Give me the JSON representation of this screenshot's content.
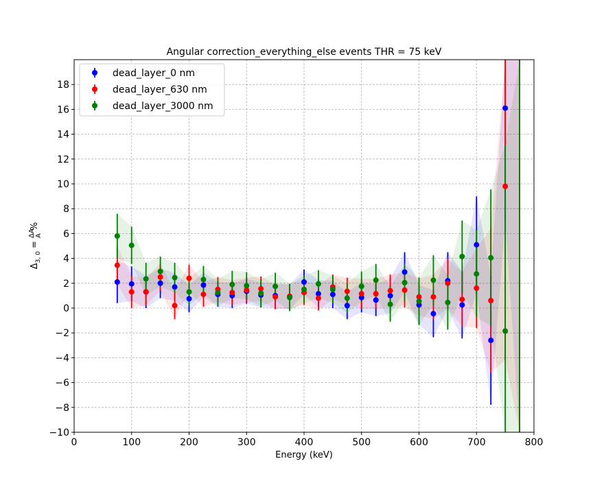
{
  "chart_data": {
    "type": "scatter",
    "title": "Angular correction_everything_else events THR = 75 keV",
    "xlabel": "Energy (keV)",
    "ylabel": "Δ3,0 = ΔA/A %",
    "xlim": [
      0,
      800
    ],
    "ylim": [
      -10,
      20
    ],
    "xticks": [
      0,
      100,
      200,
      300,
      400,
      500,
      600,
      700,
      800
    ],
    "yticks": [
      -10,
      -8,
      -6,
      -4,
      -2,
      0,
      2,
      4,
      6,
      8,
      10,
      12,
      14,
      16,
      18
    ],
    "grid": true,
    "legend_position": "top-left",
    "x": [
      75,
      100,
      125,
      150,
      175,
      200,
      225,
      250,
      275,
      300,
      325,
      350,
      375,
      400,
      425,
      450,
      475,
      500,
      525,
      550,
      575,
      600,
      625,
      650,
      675,
      700,
      725,
      750,
      775
    ],
    "series": [
      {
        "name": "dead_layer_0 nm",
        "color": "#0000ff",
        "values": [
          2.1,
          1.95,
          1.3,
          2.0,
          1.7,
          0.75,
          1.85,
          1.1,
          1.0,
          1.35,
          1.05,
          1.0,
          0.9,
          2.1,
          1.15,
          1.1,
          0.2,
          0.85,
          0.65,
          1.0,
          2.9,
          0.25,
          -0.45,
          2.2,
          0.25,
          5.1,
          -2.6,
          16.1,
          null
        ],
        "errors": [
          1.7,
          1.4,
          1.3,
          1.2,
          1.1,
          1.1,
          1.0,
          1.0,
          1.0,
          1.0,
          1.0,
          1.0,
          1.0,
          1.0,
          1.1,
          1.1,
          1.1,
          1.2,
          1.3,
          1.4,
          1.6,
          1.6,
          1.9,
          2.3,
          2.7,
          3.9,
          5.2,
          9.0,
          30
        ]
      },
      {
        "name": "dead_layer_630 nm",
        "color": "#ff0000",
        "values": [
          3.45,
          1.3,
          1.3,
          2.5,
          0.2,
          2.4,
          1.1,
          1.5,
          1.25,
          1.45,
          1.55,
          0.9,
          0.95,
          1.25,
          0.8,
          1.7,
          1.35,
          1.15,
          1.15,
          1.4,
          1.45,
          0.9,
          0.9,
          2.0,
          0.7,
          1.6,
          0.6,
          9.8,
          null
        ],
        "errors": [
          1.5,
          1.3,
          1.1,
          1.1,
          1.1,
          1.1,
          1.0,
          1.0,
          1.0,
          1.0,
          1.0,
          1.0,
          1.0,
          1.0,
          1.0,
          1.0,
          1.1,
          1.2,
          1.2,
          1.3,
          1.4,
          1.5,
          1.8,
          2.0,
          2.2,
          3.2,
          5.8,
          14,
          30
        ]
      },
      {
        "name": "dead_layer_3000 nm",
        "color": "#008000",
        "values": [
          5.8,
          5.05,
          2.35,
          2.95,
          2.45,
          1.3,
          2.3,
          1.25,
          1.9,
          1.8,
          1.2,
          1.75,
          0.85,
          1.5,
          1.95,
          1.5,
          0.8,
          1.75,
          2.25,
          0.3,
          2.05,
          0.55,
          2.25,
          0.45,
          4.15,
          2.75,
          4.05,
          -1.85,
          null
        ],
        "errors": [
          1.8,
          1.5,
          1.3,
          1.2,
          1.2,
          1.1,
          1.1,
          1.1,
          1.1,
          1.1,
          1.1,
          1.1,
          1.1,
          1.1,
          1.1,
          1.1,
          1.2,
          1.2,
          1.3,
          1.4,
          1.5,
          1.9,
          2.0,
          2.2,
          2.9,
          3.5,
          5.5,
          15,
          30
        ]
      }
    ]
  }
}
